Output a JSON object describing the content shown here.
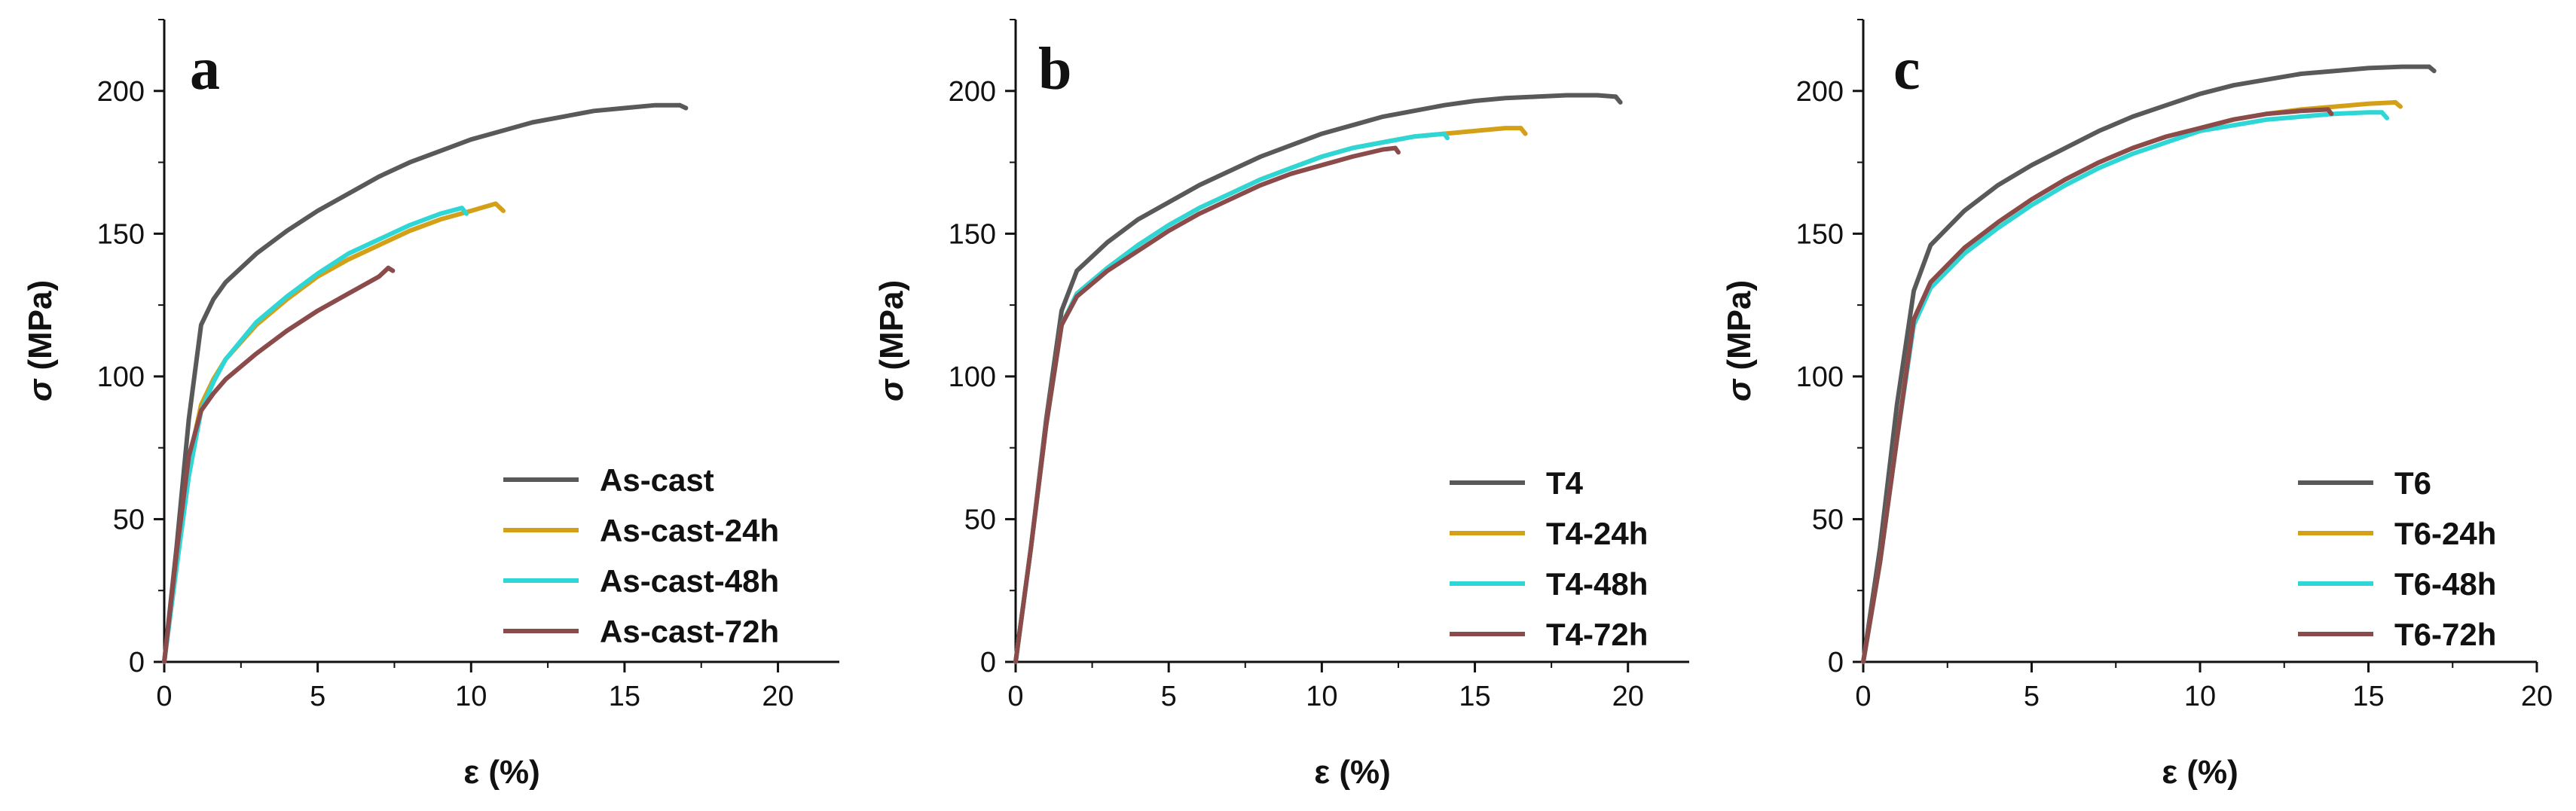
{
  "chart_data": [
    {
      "type": "line",
      "panel": "a",
      "xlabel": "ε (%)",
      "ylabel": "σ (MPa)",
      "xlim": [
        0,
        22
      ],
      "ylim": [
        0,
        225
      ],
      "xticks": [
        0,
        5,
        10,
        15,
        20
      ],
      "yticks": [
        0,
        50,
        100,
        150,
        200
      ],
      "legend_position": "bottom-right",
      "series": [
        {
          "name": "As-cast",
          "color": "#595959",
          "points": [
            [
              0,
              0
            ],
            [
              0.4,
              40
            ],
            [
              0.8,
              85
            ],
            [
              1.2,
              118
            ],
            [
              1.6,
              127
            ],
            [
              2,
              133
            ],
            [
              3,
              143
            ],
            [
              4,
              151
            ],
            [
              5,
              158
            ],
            [
              6,
              164
            ],
            [
              7,
              170
            ],
            [
              8,
              175
            ],
            [
              9,
              179
            ],
            [
              10,
              183
            ],
            [
              11,
              186
            ],
            [
              12,
              189
            ],
            [
              13,
              191
            ],
            [
              14,
              193
            ],
            [
              15,
              194
            ],
            [
              16,
              195
            ],
            [
              16.8,
              195
            ]
          ],
          "fracture": [
            [
              16.8,
              195
            ],
            [
              17.0,
              194
            ]
          ]
        },
        {
          "name": "As-cast-24h",
          "color": "#d4a017",
          "points": [
            [
              0,
              0
            ],
            [
              0.4,
              35
            ],
            [
              0.8,
              70
            ],
            [
              1.2,
              90
            ],
            [
              1.6,
              99
            ],
            [
              2,
              106
            ],
            [
              3,
              118
            ],
            [
              4,
              127
            ],
            [
              5,
              135
            ],
            [
              6,
              141
            ],
            [
              7,
              146
            ],
            [
              8,
              151
            ],
            [
              9,
              155
            ],
            [
              10,
              158
            ],
            [
              10.8,
              160.5
            ]
          ],
          "fracture": [
            [
              10.8,
              160.5
            ],
            [
              11.05,
              158
            ]
          ]
        },
        {
          "name": "As-cast-48h",
          "color": "#2fd6d6",
          "points": [
            [
              0,
              0
            ],
            [
              0.4,
              33
            ],
            [
              0.8,
              65
            ],
            [
              1.2,
              88
            ],
            [
              1.6,
              98
            ],
            [
              2,
              106
            ],
            [
              3,
              119
            ],
            [
              4,
              128
            ],
            [
              5,
              136
            ],
            [
              6,
              143
            ],
            [
              7,
              148
            ],
            [
              8,
              153
            ],
            [
              9,
              157
            ],
            [
              9.7,
              159
            ]
          ],
          "fracture": [
            [
              9.7,
              159
            ],
            [
              9.85,
              157
            ]
          ]
        },
        {
          "name": "As-cast-72h",
          "color": "#8b4b4b",
          "points": [
            [
              0,
              0
            ],
            [
              0.4,
              38
            ],
            [
              0.8,
              72
            ],
            [
              1.2,
              88
            ],
            [
              1.6,
              94
            ],
            [
              2,
              99
            ],
            [
              3,
              108
            ],
            [
              4,
              116
            ],
            [
              5,
              123
            ],
            [
              6,
              129
            ],
            [
              7,
              135
            ],
            [
              7.3,
              138
            ]
          ],
          "fracture": [
            [
              7.3,
              138
            ],
            [
              7.45,
              137
            ]
          ]
        }
      ]
    },
    {
      "type": "line",
      "panel": "b",
      "xlabel": "ε (%)",
      "ylabel": "σ (MPa)",
      "xlim": [
        0,
        22
      ],
      "ylim": [
        0,
        225
      ],
      "xticks": [
        0,
        5,
        10,
        15,
        20
      ],
      "yticks": [
        0,
        50,
        100,
        150,
        200
      ],
      "legend_position": "bottom-right",
      "series": [
        {
          "name": "T4",
          "color": "#595959",
          "points": [
            [
              0,
              0
            ],
            [
              0.5,
              40
            ],
            [
              1,
              85
            ],
            [
              1.5,
              123
            ],
            [
              2,
              137
            ],
            [
              3,
              147
            ],
            [
              4,
              155
            ],
            [
              5,
              161
            ],
            [
              6,
              167
            ],
            [
              7,
              172
            ],
            [
              8,
              177
            ],
            [
              9,
              181
            ],
            [
              10,
              185
            ],
            [
              11,
              188
            ],
            [
              12,
              191
            ],
            [
              13,
              193
            ],
            [
              14,
              195
            ],
            [
              15,
              196.5
            ],
            [
              16,
              197.5
            ],
            [
              17,
              198
            ],
            [
              18,
              198.5
            ],
            [
              19,
              198.5
            ],
            [
              19.6,
              198
            ]
          ],
          "fracture": [
            [
              19.6,
              198
            ],
            [
              19.75,
              196
            ]
          ]
        },
        {
          "name": "T4-24h",
          "color": "#d4a017",
          "points": [
            [
              0,
              0
            ],
            [
              0.5,
              40
            ],
            [
              1,
              83
            ],
            [
              1.5,
              118
            ],
            [
              2,
              129
            ],
            [
              3,
              138
            ],
            [
              4,
              146
            ],
            [
              5,
              153
            ],
            [
              6,
              159
            ],
            [
              7,
              164
            ],
            [
              8,
              169
            ],
            [
              9,
              173
            ],
            [
              10,
              177
            ],
            [
              11,
              180
            ],
            [
              12,
              182
            ],
            [
              13,
              184
            ],
            [
              14,
              185
            ],
            [
              15,
              186
            ],
            [
              16,
              187
            ],
            [
              16.5,
              187
            ]
          ],
          "fracture": [
            [
              16.5,
              187
            ],
            [
              16.65,
              185
            ]
          ]
        },
        {
          "name": "T4-48h",
          "color": "#2fd6d6",
          "points": [
            [
              0,
              0
            ],
            [
              0.5,
              40
            ],
            [
              1,
              83
            ],
            [
              1.5,
              118
            ],
            [
              2,
              129
            ],
            [
              3,
              138
            ],
            [
              4,
              146
            ],
            [
              5,
              153
            ],
            [
              6,
              159
            ],
            [
              7,
              164
            ],
            [
              8,
              169
            ],
            [
              9,
              173
            ],
            [
              10,
              177
            ],
            [
              11,
              180
            ],
            [
              12,
              182
            ],
            [
              13,
              184
            ],
            [
              14,
              185
            ]
          ],
          "fracture": [
            [
              14,
              185
            ],
            [
              14.1,
              183.5
            ]
          ]
        },
        {
          "name": "T4-72h",
          "color": "#8b4b4b",
          "points": [
            [
              0,
              0
            ],
            [
              0.5,
              40
            ],
            [
              1,
              83
            ],
            [
              1.5,
              118
            ],
            [
              2,
              128
            ],
            [
              3,
              137
            ],
            [
              4,
              144
            ],
            [
              5,
              151
            ],
            [
              6,
              157
            ],
            [
              7,
              162
            ],
            [
              8,
              167
            ],
            [
              9,
              171
            ],
            [
              10,
              174
            ],
            [
              11,
              177
            ],
            [
              12,
              179.5
            ],
            [
              12.4,
              180
            ]
          ],
          "fracture": [
            [
              12.4,
              180
            ],
            [
              12.5,
              178.5
            ]
          ]
        }
      ]
    },
    {
      "type": "line",
      "panel": "c",
      "xlabel": "ε (%)",
      "ylabel": "σ (MPa)",
      "xlim": [
        0,
        20
      ],
      "ylim": [
        0,
        225
      ],
      "xticks": [
        0,
        5,
        10,
        15,
        20
      ],
      "yticks": [
        0,
        50,
        100,
        150,
        200
      ],
      "legend_position": "bottom-right",
      "series": [
        {
          "name": "T6",
          "color": "#595959",
          "points": [
            [
              0,
              0
            ],
            [
              0.5,
              40
            ],
            [
              1,
              90
            ],
            [
              1.5,
              130
            ],
            [
              2,
              146
            ],
            [
              3,
              158
            ],
            [
              4,
              167
            ],
            [
              5,
              174
            ],
            [
              6,
              180
            ],
            [
              7,
              186
            ],
            [
              8,
              191
            ],
            [
              9,
              195
            ],
            [
              10,
              199
            ],
            [
              11,
              202
            ],
            [
              12,
              204
            ],
            [
              13,
              206
            ],
            [
              14,
              207
            ],
            [
              15,
              208
            ],
            [
              16,
              208.5
            ],
            [
              16.8,
              208.5
            ]
          ],
          "fracture": [
            [
              16.8,
              208.5
            ],
            [
              16.95,
              207
            ]
          ]
        },
        {
          "name": "T6-24h",
          "color": "#d4a017",
          "points": [
            [
              0,
              0
            ],
            [
              0.5,
              35
            ],
            [
              1,
              78
            ],
            [
              1.5,
              120
            ],
            [
              2,
              133
            ],
            [
              3,
              145
            ],
            [
              4,
              154
            ],
            [
              5,
              162
            ],
            [
              6,
              169
            ],
            [
              7,
              175
            ],
            [
              8,
              180
            ],
            [
              9,
              184
            ],
            [
              10,
              187
            ],
            [
              11,
              190
            ],
            [
              12,
              192
            ],
            [
              13,
              193.5
            ],
            [
              14,
              194.5
            ],
            [
              15,
              195.5
            ],
            [
              15.8,
              196
            ]
          ],
          "fracture": [
            [
              15.8,
              196
            ],
            [
              15.95,
              194.5
            ]
          ]
        },
        {
          "name": "T6-48h",
          "color": "#2fd6d6",
          "points": [
            [
              0,
              0
            ],
            [
              0.5,
              35
            ],
            [
              1,
              78
            ],
            [
              1.5,
              118
            ],
            [
              2,
              131
            ],
            [
              3,
              143
            ],
            [
              4,
              152
            ],
            [
              5,
              160
            ],
            [
              6,
              167
            ],
            [
              7,
              173
            ],
            [
              8,
              178
            ],
            [
              9,
              182
            ],
            [
              10,
              186
            ],
            [
              11,
              188
            ],
            [
              12,
              190
            ],
            [
              13,
              191
            ],
            [
              14,
              192
            ],
            [
              15,
              192.5
            ],
            [
              15.4,
              192.5
            ]
          ],
          "fracture": [
            [
              15.4,
              192.5
            ],
            [
              15.55,
              190.5
            ]
          ]
        },
        {
          "name": "T6-72h",
          "color": "#8b4b4b",
          "points": [
            [
              0,
              0
            ],
            [
              0.5,
              35
            ],
            [
              1,
              78
            ],
            [
              1.5,
              120
            ],
            [
              2,
              133
            ],
            [
              3,
              145
            ],
            [
              4,
              154
            ],
            [
              5,
              162
            ],
            [
              6,
              169
            ],
            [
              7,
              175
            ],
            [
              8,
              180
            ],
            [
              9,
              184
            ],
            [
              10,
              187
            ],
            [
              11,
              190
            ],
            [
              12,
              192
            ],
            [
              13,
              193
            ],
            [
              13.8,
              193.5
            ]
          ],
          "fracture": [
            [
              13.8,
              193.5
            ],
            [
              13.9,
              192
            ]
          ]
        }
      ]
    }
  ]
}
